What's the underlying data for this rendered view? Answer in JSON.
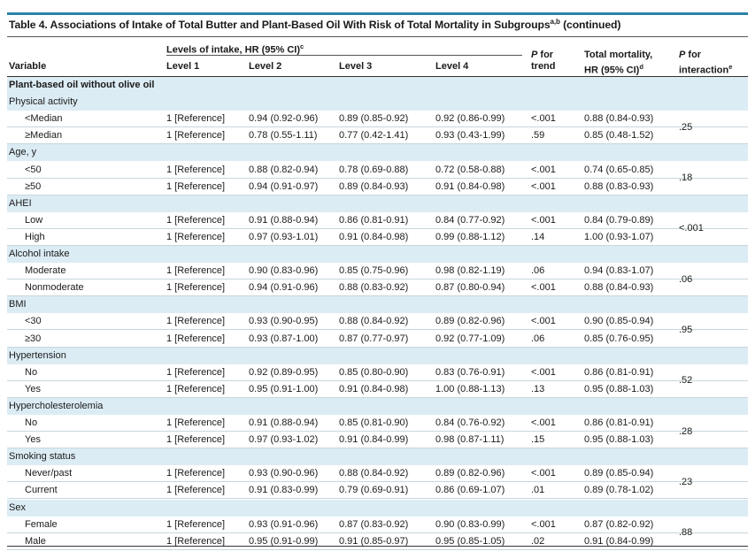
{
  "table": {
    "title": "Table 4. Associations of Intake of Total Butter and Plant-Based Oil With Risk of Total Mortality in Subgroups",
    "title_sup": "a,b",
    "title_suffix": "(continued)",
    "headers": {
      "variable": "Variable",
      "levels_group": "Levels of intake, HR (95% CI)",
      "levels_group_sup": "c",
      "level1": "Level 1",
      "level2": "Level 2",
      "level3": "Level 3",
      "level4": "Level 4",
      "ptrend_p": "P",
      "ptrend_for": "for",
      "ptrend_trend": "trend",
      "totmort_line1": "Total mortality,",
      "totmort_line2": "HR (95% CI)",
      "totmort_sup": "d",
      "pint_p": "P",
      "pint_for": "for",
      "pint_line2": "interaction",
      "pint_sup": "e"
    },
    "rows": [
      {
        "type": "bold",
        "label": "Plant-based oil without olive oil"
      },
      {
        "type": "section",
        "label": "Physical activity"
      },
      {
        "type": "data",
        "label": "<Median",
        "l1": "1 [Reference]",
        "l2": "0.94 (0.92-0.96)",
        "l3": "0.89 (0.85-0.92)",
        "l4": "0.92 (0.86-0.99)",
        "ptrend": "<.001",
        "tm": "0.88 (0.84-0.93)"
      },
      {
        "type": "data",
        "label": "≥Median",
        "l1": "1 [Reference]",
        "l2": "0.78 (0.55-1.11)",
        "l3": "0.77 (0.42-1.41)",
        "l4": "0.93 (0.43-1.99)",
        "ptrend": ".59",
        "tm": "0.85 (0.48-1.52)"
      },
      {
        "type": "section",
        "label": "Age, y"
      },
      {
        "type": "data",
        "label": "<50",
        "l1": "1 [Reference]",
        "l2": "0.88 (0.82-0.94)",
        "l3": "0.78 (0.69-0.88)",
        "l4": "0.72 (0.58-0.88)",
        "ptrend": "<.001",
        "tm": "0.74 (0.65-0.85)"
      },
      {
        "type": "data",
        "label": "≥50",
        "l1": "1 [Reference]",
        "l2": "0.94 (0.91-0.97)",
        "l3": "0.89 (0.84-0.93)",
        "l4": "0.91 (0.84-0.98)",
        "ptrend": "<.001",
        "tm": "0.88 (0.83-0.93)"
      },
      {
        "type": "section",
        "label": "AHEI"
      },
      {
        "type": "data",
        "label": "Low",
        "l1": "1 [Reference]",
        "l2": "0.91 (0.88-0.94)",
        "l3": "0.86 (0.81-0.91)",
        "l4": "0.84 (0.77-0.92)",
        "ptrend": "<.001",
        "tm": "0.84 (0.79-0.89)"
      },
      {
        "type": "data",
        "label": "High",
        "l1": "1 [Reference]",
        "l2": "0.97 (0.93-1.01)",
        "l3": "0.91 (0.84-0.98)",
        "l4": "0.99 (0.88-1.12)",
        "ptrend": ".14",
        "tm": "1.00 (0.93-1.07)"
      },
      {
        "type": "section",
        "label": "Alcohol intake"
      },
      {
        "type": "data",
        "label": "Moderate",
        "l1": "1 [Reference]",
        "l2": "0.90 (0.83-0.96)",
        "l3": "0.85 (0.75-0.96)",
        "l4": "0.98 (0.82-1.19)",
        "ptrend": ".06",
        "tm": "0.94 (0.83-1.07)"
      },
      {
        "type": "data",
        "label": "Nonmoderate",
        "l1": "1 [Reference]",
        "l2": "0.94 (0.91-0.96)",
        "l3": "0.88 (0.83-0.92)",
        "l4": "0.87 (0.80-0.94)",
        "ptrend": "<.001",
        "tm": "0.88 (0.84-0.93)"
      },
      {
        "type": "section",
        "label": "BMI"
      },
      {
        "type": "data",
        "label": "<30",
        "l1": "1 [Reference]",
        "l2": "0.93 (0.90-0.95)",
        "l3": "0.88 (0.84-0.92)",
        "l4": "0.89 (0.82-0.96)",
        "ptrend": "<.001",
        "tm": "0.90 (0.85-0.94)"
      },
      {
        "type": "data",
        "label": "≥30",
        "l1": "1 [Reference]",
        "l2": "0.93 (0.87-1.00)",
        "l3": "0.87 (0.77-0.97)",
        "l4": "0.92 (0.77-1.09)",
        "ptrend": ".06",
        "tm": "0.85 (0.76-0.95)"
      },
      {
        "type": "section",
        "label": "Hypertension"
      },
      {
        "type": "data",
        "label": "No",
        "l1": "1 [Reference]",
        "l2": "0.92 (0.89-0.95)",
        "l3": "0.85 (0.80-0.90)",
        "l4": "0.83 (0.76-0.91)",
        "ptrend": "<.001",
        "tm": "0.86 (0.81-0.91)"
      },
      {
        "type": "data",
        "label": "Yes",
        "l1": "1 [Reference]",
        "l2": "0.95 (0.91-1.00)",
        "l3": "0.91 (0.84-0.98)",
        "l4": "1.00 (0.88-1.13)",
        "ptrend": ".13",
        "tm": "0.95 (0.88-1.03)"
      },
      {
        "type": "section",
        "label": "Hypercholesterolemia"
      },
      {
        "type": "data",
        "label": "No",
        "l1": "1 [Reference]",
        "l2": "0.91 (0.88-0.94)",
        "l3": "0.85 (0.81-0.90)",
        "l4": "0.84 (0.76-0.92)",
        "ptrend": "<.001",
        "tm": "0.86 (0.81-0.91)"
      },
      {
        "type": "data",
        "label": "Yes",
        "l1": "1 [Reference]",
        "l2": "0.97 (0.93-1.02)",
        "l3": "0.91 (0.84-0.99)",
        "l4": "0.98 (0.87-1.11)",
        "ptrend": ".15",
        "tm": "0.95 (0.88-1.03)"
      },
      {
        "type": "section",
        "label": "Smoking status"
      },
      {
        "type": "data",
        "label": "Never/past",
        "l1": "1 [Reference]",
        "l2": "0.93 (0.90-0.96)",
        "l3": "0.88 (0.84-0.92)",
        "l4": "0.89 (0.82-0.96)",
        "ptrend": "<.001",
        "tm": "0.89 (0.85-0.94)"
      },
      {
        "type": "data",
        "label": "Current",
        "l1": "1 [Reference]",
        "l2": "0.91 (0.83-0.99)",
        "l3": "0.79 (0.69-0.91)",
        "l4": "0.86 (0.69-1.07)",
        "ptrend": ".01",
        "tm": "0.89 (0.78-1.02)"
      },
      {
        "type": "section",
        "label": "Sex"
      },
      {
        "type": "data",
        "label": "Female",
        "l1": "1 [Reference]",
        "l2": "0.93 (0.91-0.96)",
        "l3": "0.87 (0.83-0.92)",
        "l4": "0.90 (0.83-0.99)",
        "ptrend": "<.001",
        "tm": "0.87 (0.82-0.92)"
      },
      {
        "type": "data",
        "label": "Male",
        "l1": "1 [Reference]",
        "l2": "0.95 (0.91-0.99)",
        "l3": "0.91 (0.85-0.97)",
        "l4": "0.95 (0.85-1.05)",
        "ptrend": ".02",
        "tm": "0.91 (0.84-0.99)"
      }
    ],
    "p_interaction": [
      ".25",
      ".18",
      "<.001",
      ".06",
      ".95",
      ".52",
      ".28",
      ".23",
      ".88"
    ],
    "colors": {
      "accent_bar": "#2a84a6",
      "section_bg": "#dcecf4",
      "row_rule": "#c9d6dc"
    }
  }
}
